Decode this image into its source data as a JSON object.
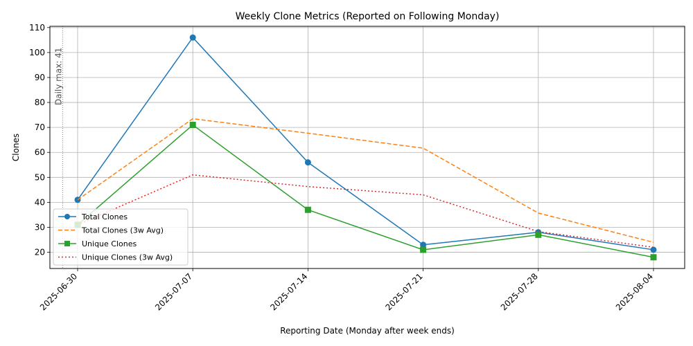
{
  "chart_data": {
    "type": "line",
    "title": "Weekly Clone Metrics (Reported on Following Monday)",
    "xlabel": "Reporting Date (Monday after week ends)",
    "ylabel": "Clones",
    "categories": [
      "2025-06-30",
      "2025-07-07",
      "2025-07-14",
      "2025-07-21",
      "2025-07-28",
      "2025-08-04"
    ],
    "ylim": [
      13.5,
      110.5
    ],
    "yticks": [
      20,
      30,
      40,
      50,
      60,
      70,
      80,
      90,
      100,
      110
    ],
    "grid": true,
    "legend_position": "lower-left",
    "series": [
      {
        "name": "Total Clones",
        "values": [
          41,
          106,
          56,
          23,
          28,
          21
        ],
        "color": "#1f77b4",
        "dash": "solid",
        "marker": "circle"
      },
      {
        "name": "Total Clones (3w Avg)",
        "values": [
          41,
          73.5,
          67.7,
          61.7,
          35.7,
          24
        ],
        "color": "#ff7f0e",
        "dash": "dashed",
        "marker": "none"
      },
      {
        "name": "Unique Clones",
        "values": [
          31,
          71,
          37,
          21,
          27,
          18
        ],
        "color": "#2ca02c",
        "dash": "solid",
        "marker": "square"
      },
      {
        "name": "Unique Clones (3w Avg)",
        "values": [
          31,
          51,
          46.3,
          43,
          28.3,
          22
        ],
        "color": "#d62728",
        "dash": "dotted",
        "marker": "none"
      }
    ],
    "annotation": {
      "text": "Daily max: 41",
      "x_offset_categories": -0.13
    }
  }
}
